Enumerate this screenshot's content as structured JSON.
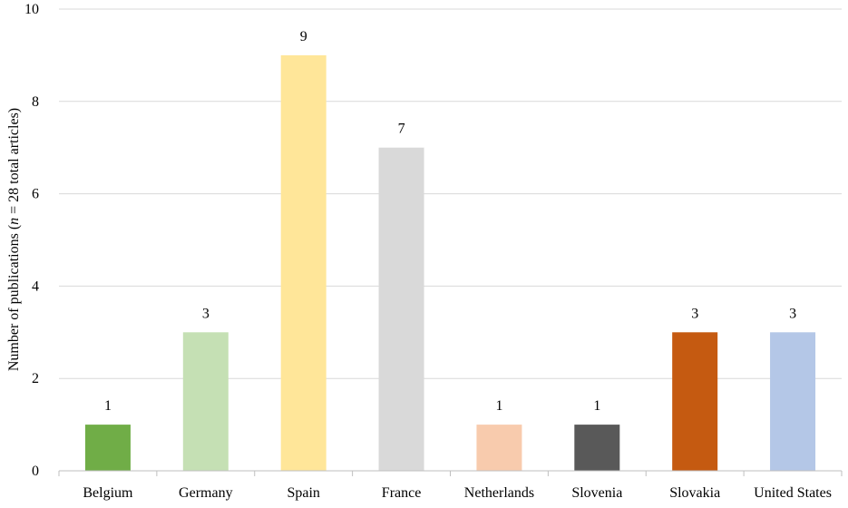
{
  "chart_data": {
    "type": "bar",
    "categories": [
      "Belgium",
      "Germany",
      "Spain",
      "France",
      "Netherlands",
      "Slovenia",
      "Slovakia",
      "United States"
    ],
    "values": [
      1,
      3,
      9,
      7,
      1,
      1,
      3,
      3
    ],
    "colors": [
      "#70ad47",
      "#c5e0b4",
      "#ffe699",
      "#d9d9d9",
      "#f8cbad",
      "#595959",
      "#c55a11",
      "#b4c7e7"
    ],
    "data_labels": [
      "1",
      "3",
      "9",
      "7",
      "1",
      "1",
      "3",
      "3"
    ],
    "title": "",
    "xlabel": "",
    "ylabel": {
      "before": "Number of publications (",
      "italic": "n",
      "after": " = 28 total articles)"
    },
    "ylim": [
      0,
      10
    ],
    "yticks": [
      0,
      2,
      4,
      6,
      8,
      10
    ],
    "ytick_labels": [
      "0",
      "2",
      "4",
      "6",
      "8",
      "10"
    ],
    "grid": true,
    "legend": "none"
  }
}
